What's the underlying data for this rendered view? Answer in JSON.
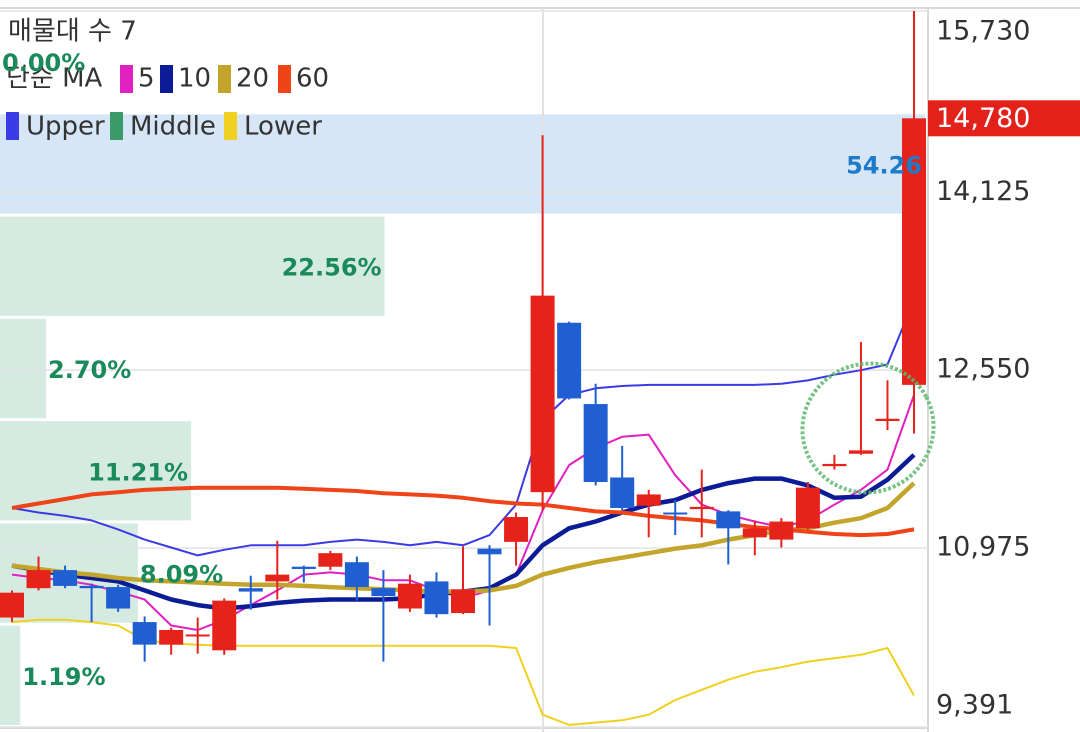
{
  "chart_data": {
    "type": "candlestick",
    "title": "매물대 수 7",
    "ma_label": "단순 MA",
    "open": [
      10360,
      10620,
      10780,
      10640,
      10630,
      10320,
      10120,
      10200,
      10070,
      10620,
      10680,
      10810,
      10810,
      10850,
      10620,
      10440,
      10680,
      10400,
      10970,
      11030,
      11470,
      12970,
      12250,
      11600,
      11350,
      11290,
      11320,
      11300,
      11070,
      11050,
      11150,
      11700,
      11810,
      12100,
      12420
    ],
    "high": [
      10600,
      10900,
      10820,
      10660,
      10650,
      10370,
      10270,
      10360,
      10530,
      10730,
      11040,
      10820,
      10950,
      10900,
      10780,
      10740,
      10760,
      10990,
      11000,
      11290,
      14630,
      12980,
      12430,
      11880,
      11490,
      11400,
      11670,
      11310,
      11220,
      11240,
      11560,
      11800,
      12800,
      12460,
      15730
    ],
    "low": [
      10320,
      10600,
      10620,
      10320,
      10410,
      9970,
      10030,
      10040,
      10030,
      10430,
      10520,
      10670,
      10780,
      10510,
      9970,
      10410,
      10360,
      10390,
      10290,
      10820,
      11310,
      12290,
      11530,
      11310,
      11070,
      11090,
      11070,
      10830,
      10910,
      10980,
      11140,
      11670,
      11800,
      12020,
      11990
    ],
    "close": [
      10580,
      10780,
      10640,
      10620,
      10440,
      10120,
      10250,
      10210,
      10510,
      10590,
      10740,
      10790,
      10930,
      10630,
      10550,
      10660,
      10390,
      10610,
      10920,
      11250,
      13210,
      12300,
      11560,
      11330,
      11450,
      11280,
      11340,
      11150,
      11150,
      11210,
      11510,
      11720,
      11840,
      12120,
      14780
    ],
    "up_color": "#e5231b",
    "down_color": "#1f5fd1",
    "series": [
      {
        "name": "5",
        "color": "#e020c0",
        "values": [
          10740,
          10710,
          10690,
          10650,
          10590,
          10520,
          10290,
          10250,
          10340,
          10470,
          10600,
          10740,
          10760,
          10740,
          10690,
          10690,
          10600,
          10530,
          10600,
          10740,
          11310,
          11710,
          11860,
          11960,
          11980,
          11620,
          11360,
          11270,
          11210,
          11160,
          11220,
          11360,
          11490,
          11670,
          12330
        ]
      },
      {
        "name": "10",
        "color": "#0c1b96",
        "values": [
          10820,
          10780,
          10740,
          10710,
          10680,
          10600,
          10520,
          10470,
          10440,
          10460,
          10490,
          10510,
          10520,
          10520,
          10520,
          10530,
          10570,
          10590,
          10620,
          10740,
          11000,
          11150,
          11210,
          11290,
          11360,
          11400,
          11490,
          11550,
          11590,
          11590,
          11530,
          11420,
          11430,
          11580,
          11800
        ]
      },
      {
        "name": "20",
        "color": "#c2a52a",
        "values": [
          10820,
          10790,
          10760,
          10740,
          10710,
          10690,
          10680,
          10670,
          10660,
          10650,
          10650,
          10640,
          10630,
          10620,
          10610,
          10600,
          10590,
          10590,
          10600,
          10640,
          10740,
          10800,
          10850,
          10890,
          10930,
          10970,
          11000,
          11050,
          11090,
          11130,
          11150,
          11200,
          11240,
          11330,
          11550
        ]
      },
      {
        "name": "60",
        "color": "#ee4418",
        "values": [
          11330,
          11370,
          11410,
          11450,
          11470,
          11490,
          11500,
          11510,
          11510,
          11510,
          11510,
          11500,
          11490,
          11480,
          11460,
          11450,
          11440,
          11420,
          11390,
          11370,
          11360,
          11330,
          11300,
          11290,
          11260,
          11240,
          11220,
          11190,
          11160,
          11140,
          11120,
          11100,
          11090,
          11100,
          11140
        ]
      }
    ],
    "bands": [
      {
        "name": "Upper",
        "color": "#3b3be6",
        "values": [
          11330,
          11290,
          11260,
          11220,
          11140,
          11050,
          10980,
          10910,
          10960,
          11000,
          11000,
          11000,
          11030,
          11050,
          11030,
          11000,
          11030,
          11000,
          11090,
          11360,
          12110,
          12330,
          12390,
          12410,
          12420,
          12420,
          12420,
          12420,
          12420,
          12430,
          12460,
          12510,
          12550,
          12600,
          13170
        ]
      },
      {
        "name": "Middle",
        "color": "#3a9a6a"
      },
      {
        "name": "Lower",
        "color": "#f0d020",
        "values": [
          10320,
          10340,
          10340,
          10320,
          10290,
          10160,
          10130,
          10120,
          10110,
          10110,
          10110,
          10110,
          10110,
          10110,
          10110,
          10110,
          10110,
          10110,
          10110,
          10090,
          9500,
          9410,
          9430,
          9450,
          9500,
          9630,
          9720,
          9810,
          9880,
          9920,
          9970,
          10000,
          10030,
          10090,
          9670
        ]
      }
    ],
    "volume_profile": {
      "values": [
        0,
        54.26,
        22.56,
        2.7,
        11.21,
        8.09,
        1.19
      ],
      "value_labels": [
        "0.00%",
        "54.26",
        "22.56%",
        "2.70%",
        "11.21%",
        "8.09%",
        "1.19%"
      ],
      "color": "#d5ebe1",
      "highlight_color": "#d6e6f7",
      "label_color": "#1a8a5a",
      "highlight_label_color": "#1d7bc9"
    },
    "last_price": {
      "value": 14780,
      "label": "14,780"
    },
    "last_price_color": "#e3211b",
    "ylim": [
      9391,
      15730
    ],
    "yticks": [
      {
        "value": 15730,
        "label": "15,730"
      },
      {
        "value": 14125,
        "label": "14,125"
      },
      {
        "value": 12550,
        "label": "12,550"
      },
      {
        "value": 10975,
        "label": "10,975"
      },
      {
        "value": 9391,
        "label": "9,391"
      }
    ],
    "grid": true
  }
}
